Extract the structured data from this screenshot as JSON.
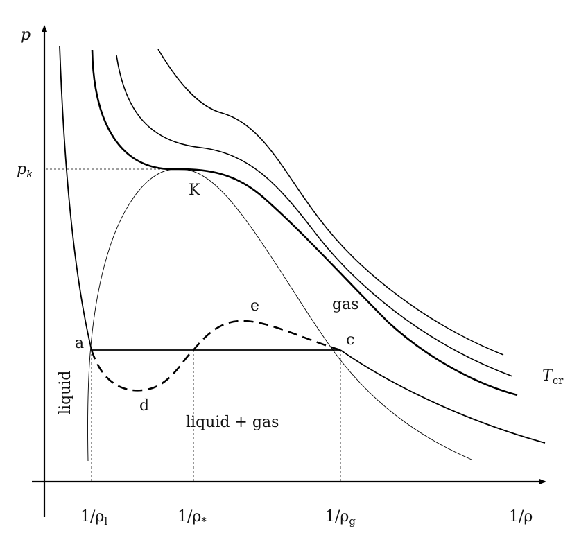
{
  "axes": {
    "y_label": "p",
    "x_label": "1/ρ"
  },
  "ticks": {
    "pk": {
      "base": "p",
      "sub": "k"
    },
    "rho_l": {
      "base": "1/ρ",
      "sub": "l"
    },
    "rho_star": {
      "base": "1/ρ",
      "sub": "*"
    },
    "rho_g": {
      "base": "1/ρ",
      "sub": "g"
    }
  },
  "points": {
    "a": "a",
    "c": "c",
    "d": "d",
    "e": "e",
    "K": "K"
  },
  "regions": {
    "liquid": "liquid",
    "gas": "gas",
    "mixed": "liquid + gas"
  },
  "isotherm_label": {
    "base": "T",
    "sub": "cr"
  }
}
